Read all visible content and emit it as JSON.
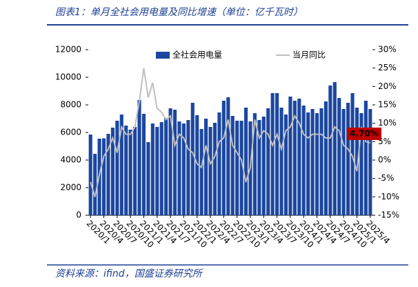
{
  "chart_data": {
    "type": "bar-line",
    "title": "图表1：单月全社会用电量及同比增速（单位：亿千瓦时）",
    "source": "资料来源：ifind，国盛证券研究所",
    "categories": [
      "2020/1",
      null,
      null,
      "2020/4",
      null,
      null,
      "2020/7",
      null,
      null,
      "2020/10",
      null,
      null,
      "2021/1",
      null,
      null,
      "2021/4",
      null,
      null,
      "2021/7",
      null,
      null,
      "2021/10",
      null,
      null,
      "2022/1",
      null,
      null,
      "2022/4",
      null,
      null,
      "2022/7",
      null,
      null,
      "2022/10",
      null,
      null,
      "2023/1",
      null,
      null,
      "2023/4",
      null,
      null,
      "2023/7",
      null,
      null,
      "2023/10",
      null,
      null,
      "2024/1",
      null,
      null,
      "2024/4",
      null,
      null,
      "2024/7",
      null,
      null,
      "2024/10",
      null,
      null,
      "2025/1",
      null,
      null,
      "2025/4"
    ],
    "series": [
      {
        "name": "全社会用电量",
        "type": "bar",
        "color": "#1c47a0",
        "values": [
          5850,
          4450,
          5550,
          5570,
          5900,
          6350,
          6850,
          7300,
          6500,
          6200,
          6400,
          8350,
          7350,
          5300,
          6650,
          6400,
          6750,
          7050,
          7750,
          7650,
          6800,
          6650,
          6900,
          8150,
          7250,
          6250,
          7000,
          6400,
          6700,
          7450,
          8300,
          8550,
          7200,
          6850,
          6850,
          7800,
          6800,
          7400,
          6900,
          7150,
          7750,
          8850,
          8850,
          7800,
          7300,
          8600,
          8300,
          8450,
          7950,
          7450,
          7700,
          7400,
          7750,
          8250,
          9400,
          9650,
          8500,
          7700,
          8150,
          8850,
          7800,
          7400,
          8300,
          7700
        ]
      },
      {
        "name": "当月同比",
        "type": "line",
        "axis": "y2",
        "color": "#bfbfbf",
        "values": [
          -6,
          -10,
          -4,
          1,
          3,
          6,
          2,
          9,
          7,
          7,
          9,
          16,
          25,
          17,
          21,
          14,
          13,
          11,
          12,
          4,
          7,
          6,
          3,
          2,
          -1,
          -2,
          4,
          -1,
          1,
          5,
          6,
          11,
          4,
          2,
          0,
          -6,
          -2,
          11,
          6,
          8,
          7,
          4,
          7,
          3,
          8,
          9,
          12,
          10,
          7,
          6,
          7,
          7,
          7,
          6,
          6,
          9,
          8,
          4,
          3,
          1,
          -3,
          9,
          5,
          4.7
        ]
      }
    ],
    "annotations": [
      {
        "text": "4.70%",
        "value": 4.7
      }
    ],
    "ylim": [
      0,
      12000
    ],
    "yticks": [
      0,
      2000,
      4000,
      6000,
      8000,
      10000,
      12000
    ],
    "y2lim": [
      -15,
      30
    ],
    "y2ticks": [
      {
        "value": -15,
        "label": "-15%"
      },
      {
        "value": -10,
        "label": "-10%"
      },
      {
        "value": -5,
        "label": "-5%"
      },
      {
        "value": 0,
        "label": "0%"
      },
      {
        "value": 5,
        "label": "5%"
      },
      {
        "value": 10,
        "label": "10%"
      },
      {
        "value": 15,
        "label": "15%"
      },
      {
        "value": 20,
        "label": "20%"
      },
      {
        "value": 25,
        "label": "25%"
      },
      {
        "value": 30,
        "label": "30%"
      }
    ],
    "legend": "top"
  }
}
